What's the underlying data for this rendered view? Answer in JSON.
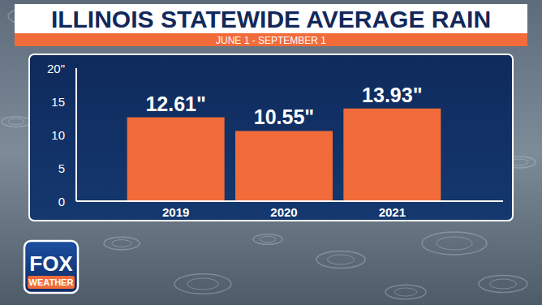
{
  "chart_data": {
    "type": "bar",
    "title": "ILLINOIS STATEWIDE AVERAGE RAIN",
    "subtitle": "JUNE 1 - SEPTEMBER 1",
    "categories": [
      "2019",
      "2020",
      "2021"
    ],
    "values": [
      12.61,
      10.55,
      13.93
    ],
    "value_labels": [
      "12.61\"",
      "10.55\"",
      "13.93\""
    ],
    "color": "#f26b3a",
    "ylim": [
      0,
      20
    ],
    "yticks": [
      0,
      5,
      10,
      15,
      {
        "value": 20,
        "label": "20\""
      }
    ],
    "grid": false,
    "data_labels": true
  },
  "logo": {
    "text": [
      "FOX",
      "WEATHER"
    ]
  }
}
